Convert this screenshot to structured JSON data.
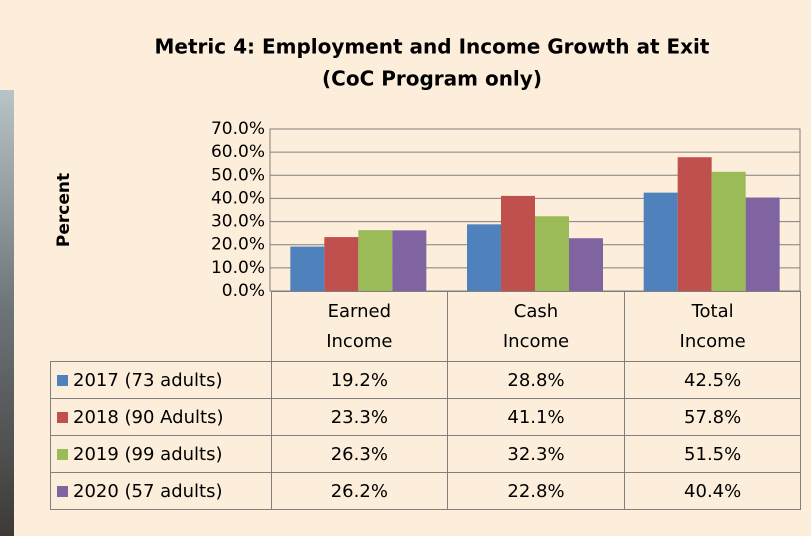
{
  "chart_data": {
    "type": "bar",
    "title": "Metric 4: Employment and Income Growth at Exit",
    "subtitle": "(CoC Program only)",
    "y_label": "Percent",
    "categories": [
      "Earned Income",
      "Cash Income",
      "Total Income"
    ],
    "series": [
      {
        "name": "2017 (73 adults)",
        "color": "#4f81bd",
        "values": [
          19.2,
          28.8,
          42.5
        ],
        "value_labels": [
          "19.2%",
          "28.8%",
          "42.5%"
        ]
      },
      {
        "name": "2018 (90 Adults)",
        "color": "#c0504d",
        "values": [
          23.3,
          41.1,
          57.8
        ],
        "value_labels": [
          "23.3%",
          "41.1%",
          "57.8%"
        ]
      },
      {
        "name": "2019 (99 adults)",
        "color": "#9bbb59",
        "values": [
          26.3,
          32.3,
          51.5
        ],
        "value_labels": [
          "26.3%",
          "32.3%",
          "51.5%"
        ]
      },
      {
        "name": "2020 (57 adults)",
        "color": "#8064a2",
        "values": [
          26.2,
          22.8,
          40.4
        ],
        "value_labels": [
          "26.2%",
          "22.8%",
          "40.4%"
        ]
      }
    ],
    "ylim": [
      0,
      70
    ],
    "yticks": [
      {
        "value": 0,
        "label": "0.0%"
      },
      {
        "value": 10,
        "label": "10.0%"
      },
      {
        "value": 20,
        "label": "20.0%"
      },
      {
        "value": 30,
        "label": "30.0%"
      },
      {
        "value": 40,
        "label": "40.0%"
      },
      {
        "value": 50,
        "label": "50.0%"
      },
      {
        "value": 60,
        "label": "60.0%"
      },
      {
        "value": 70,
        "label": "70.0%"
      }
    ],
    "grid": true
  }
}
